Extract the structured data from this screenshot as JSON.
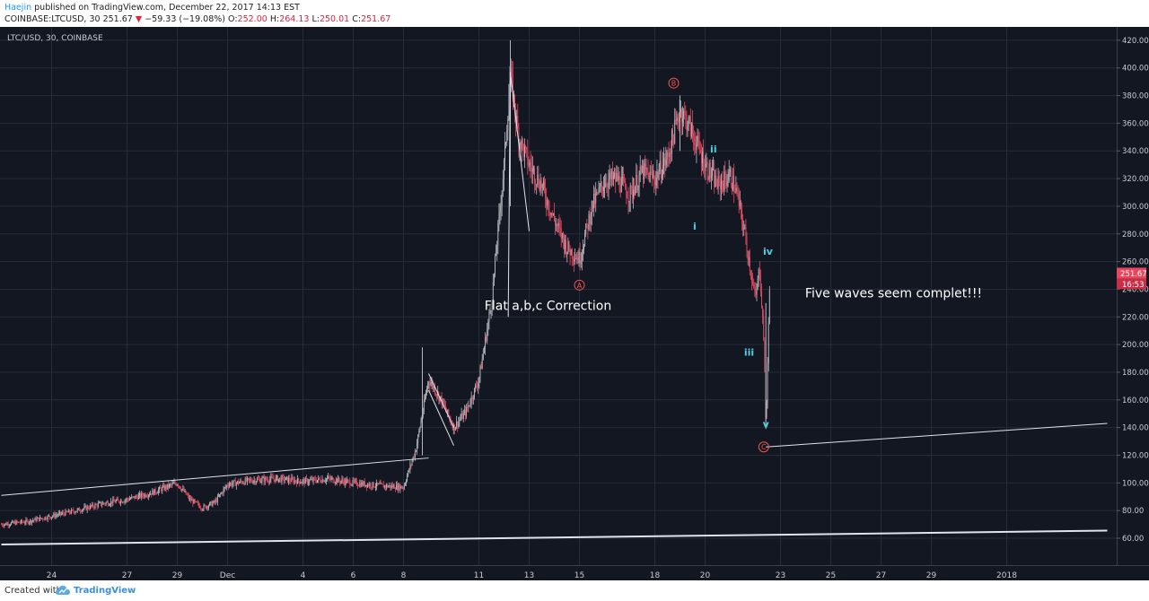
{
  "header": {
    "author": "Haejin",
    "published": " published on TradingView.com, December 22, 2017 14:13 EST",
    "symbol": "COINBASE:LTCUSD, 30",
    "last": "251.67",
    "change": "−59.33 (−19.08%)",
    "o_label": "O:",
    "o_value": "252.00",
    "h_label": "H:",
    "h_value": "264.13",
    "l_label": "L:",
    "l_value": "250.01",
    "c_label": "C:",
    "c_value": "251.67"
  },
  "footer": {
    "created_with": "Created with",
    "brand": "TradingView"
  },
  "colors": {
    "background": "#131722",
    "grid": "#262b3a",
    "up": "#b4b8be",
    "down": "#e8485f",
    "drawings": "#e0e3eb",
    "wave_cyan": "#4dd0e1",
    "wave_red": "#ef5350",
    "axis_text": "#c8cbd3"
  },
  "chart_data": {
    "type": "candlestick",
    "pair_label": "LTC/USD, 30, COINBASE",
    "x_ticks": [
      "24",
      "27",
      "29",
      "Dec",
      "4",
      "6",
      "8",
      "11",
      "13",
      "15",
      "18",
      "20",
      "23",
      "25",
      "27",
      "29",
      "2018"
    ],
    "y_ticks": [
      "60.00",
      "80.00",
      "100.00",
      "120.00",
      "140.00",
      "160.00",
      "180.00",
      "200.00",
      "220.00",
      "240.00",
      "260.00",
      "280.00",
      "300.00",
      "320.00",
      "340.00",
      "360.00",
      "380.00",
      "400.00",
      "420.00"
    ],
    "ylim": [
      55,
      430
    ],
    "last_price_label": "251.67",
    "countdown_label": "16:53",
    "path_points": [
      [
        "2017-11-22",
        70
      ],
      [
        "2017-11-23",
        72
      ],
      [
        "2017-11-24",
        76
      ],
      [
        "2017-11-25",
        80
      ],
      [
        "2017-11-26",
        85
      ],
      [
        "2017-11-27",
        88
      ],
      [
        "2017-11-28",
        93
      ],
      [
        "2017-11-29",
        100
      ],
      [
        "2017-11-29T12",
        88
      ],
      [
        "2017-11-30",
        82
      ],
      [
        "2017-11-30T12",
        86
      ],
      [
        "2017-12-01",
        99
      ],
      [
        "2017-12-02",
        102
      ],
      [
        "2017-12-03",
        103
      ],
      [
        "2017-12-04",
        101
      ],
      [
        "2017-12-05",
        103
      ],
      [
        "2017-12-06",
        100
      ],
      [
        "2017-12-07",
        98
      ],
      [
        "2017-12-08",
        97
      ],
      [
        "2017-12-08T12",
        125
      ],
      [
        "2017-12-09",
        175
      ],
      [
        "2017-12-09T12",
        160
      ],
      [
        "2017-12-10",
        140
      ],
      [
        "2017-12-10T12",
        152
      ],
      [
        "2017-12-11",
        175
      ],
      [
        "2017-12-11T12",
        230
      ],
      [
        "2017-12-12",
        330
      ],
      [
        "2017-12-12T06",
        395
      ],
      [
        "2017-12-12T14",
        350
      ],
      [
        "2017-12-13",
        330
      ],
      [
        "2017-12-13T12",
        315
      ],
      [
        "2017-12-14",
        290
      ],
      [
        "2017-12-14T12",
        270
      ],
      [
        "2017-12-15",
        262
      ],
      [
        "2017-12-15T12",
        300
      ],
      [
        "2017-12-16",
        318
      ],
      [
        "2017-12-16T12",
        320
      ],
      [
        "2017-12-17",
        308
      ],
      [
        "2017-12-17T12",
        325
      ],
      [
        "2017-12-18",
        320
      ],
      [
        "2017-12-18T12",
        335
      ],
      [
        "2017-12-19",
        370
      ],
      [
        "2017-12-19T08",
        360
      ],
      [
        "2017-12-19T16",
        345
      ],
      [
        "2017-12-20",
        330
      ],
      [
        "2017-12-20T12",
        315
      ],
      [
        "2017-12-21",
        322
      ],
      [
        "2017-12-21T06",
        310
      ],
      [
        "2017-12-21T14",
        280
      ],
      [
        "2017-12-22",
        232
      ],
      [
        "2017-12-22T04",
        256
      ],
      [
        "2017-12-22T08",
        205
      ],
      [
        "2017-12-22T10",
        140
      ],
      [
        "2017-12-22T14",
        252
      ]
    ],
    "extremes": [
      {
        "t": "2017-12-12T06",
        "high": 420,
        "low": 300
      },
      {
        "t": "2017-12-19",
        "high": 380,
        "low": 340
      },
      {
        "t": "2017-12-22T10",
        "high": 230,
        "low": 139
      },
      {
        "t": "2017-12-08T18",
        "high": 198,
        "low": 120
      }
    ],
    "trendlines": [
      {
        "p1": [
          "2017-11-22",
          91
        ],
        "p2": [
          "2017-12-09",
          118
        ]
      },
      {
        "p1": [
          "2017-12-22T10",
          126
        ],
        "p2": [
          "2018-01-05",
          143
        ]
      },
      {
        "p1": [
          "2017-11-22",
          55.5
        ],
        "p2": [
          "2018-01-05",
          65.5
        ]
      },
      {
        "p1": [
          "2017-12-09",
          179
        ],
        "p2": [
          "2017-12-10",
          140
        ]
      },
      {
        "p1": [
          "2017-12-09",
          167
        ],
        "p2": [
          "2017-12-10",
          127
        ]
      },
      {
        "p1": [
          "2017-12-12T06",
          397
        ],
        "p2": [
          "2017-12-12T04",
          220
        ]
      },
      {
        "p1": [
          "2017-12-12T06",
          397
        ],
        "p2": [
          "2017-12-13",
          282
        ]
      }
    ],
    "annotations": [
      {
        "id": "A",
        "label": "A",
        "circled": true,
        "color": "red",
        "t": "2017-12-15",
        "price": 243
      },
      {
        "id": "B",
        "label": "B",
        "circled": true,
        "color": "red",
        "t": "2017-12-18T18",
        "price": 389
      },
      {
        "id": "C",
        "label": "C",
        "circled": true,
        "color": "red",
        "t": "2017-12-22T08",
        "price": 126
      },
      {
        "id": "i",
        "label": "i",
        "circled": false,
        "color": "cyan",
        "t": "2017-12-19T14",
        "price": 283
      },
      {
        "id": "ii",
        "label": "ii",
        "circled": false,
        "color": "cyan",
        "t": "2017-12-20T08",
        "price": 339
      },
      {
        "id": "iii",
        "label": "iii",
        "circled": false,
        "color": "cyan",
        "t": "2017-12-21T18",
        "price": 192
      },
      {
        "id": "iv",
        "label": "iv",
        "circled": false,
        "color": "cyan",
        "t": "2017-12-22T12",
        "price": 265
      },
      {
        "id": "v",
        "label": "v",
        "circled": false,
        "color": "cyan",
        "t": "2017-12-22T10",
        "price": 140
      },
      {
        "id": "flat",
        "label": "Flat a,b,c Correction",
        "circled": false,
        "color": "white",
        "t": "2017-12-13T18",
        "price": 225
      },
      {
        "id": "five",
        "label": "Five waves seem complet!!!",
        "circled": false,
        "color": "white",
        "t": "2017-12-27T12",
        "price": 234
      }
    ]
  }
}
